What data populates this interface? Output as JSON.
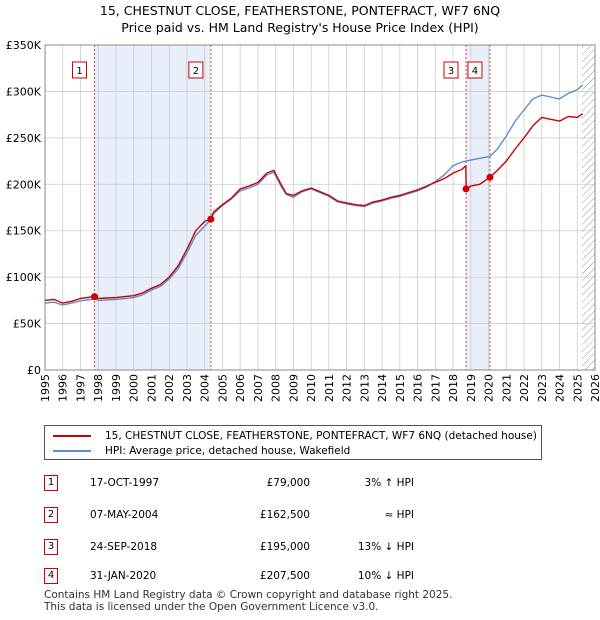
{
  "title_line1": "15, CHESTNUT CLOSE, FEATHERSTONE, PONTEFRACT, WF7 6NQ",
  "title_line2": "Price paid vs. HM Land Registry's House Price Index (HPI)",
  "colors": {
    "property": "#cc0000",
    "hpi": "#5b8fcf",
    "band": "#e8eefa",
    "grid": "#cccccc",
    "marker_line": "#dd4444",
    "hatch": "#999999"
  },
  "chart_data": {
    "type": "line",
    "ylim": [
      0,
      350000
    ],
    "xlim": [
      1995,
      2026
    ],
    "y_ticks": [
      0,
      50000,
      100000,
      150000,
      200000,
      250000,
      300000,
      350000
    ],
    "y_tick_labels": [
      "£0",
      "£50K",
      "£100K",
      "£150K",
      "£200K",
      "£250K",
      "£300K",
      "£350K"
    ],
    "x_ticks": [
      1995,
      1996,
      1997,
      1998,
      1999,
      2000,
      2001,
      2002,
      2003,
      2004,
      2005,
      2006,
      2007,
      2008,
      2009,
      2010,
      2011,
      2012,
      2013,
      2014,
      2015,
      2016,
      2017,
      2018,
      2019,
      2020,
      2021,
      2022,
      2023,
      2024,
      2025,
      2026
    ],
    "x_tick_labels": [
      "1995",
      "1996",
      "1997",
      "1998",
      "1999",
      "2000",
      "2001",
      "2002",
      "2003",
      "2004",
      "2005",
      "2006",
      "2007",
      "2008",
      "2009",
      "2010",
      "2011",
      "2012",
      "2013",
      "2014",
      "2015",
      "2016",
      "2017",
      "2018",
      "2019",
      "2020",
      "2021",
      "2022",
      "2023",
      "2024",
      "2025",
      "2026"
    ],
    "forecast_from": 2025.25,
    "series": [
      {
        "name": "15, CHESTNUT CLOSE, FEATHERSTONE, PONTEFRACT, WF7 6NQ (detached house)",
        "role": "property",
        "x": [
          1995.0,
          1995.5,
          1996.0,
          1996.5,
          1997.0,
          1997.79,
          1998.0,
          1998.5,
          1999.0,
          1999.5,
          2000.0,
          2000.5,
          2001.0,
          2001.5,
          2002.0,
          2002.5,
          2003.0,
          2003.5,
          2004.0,
          2004.35,
          2004.5,
          2005.0,
          2005.5,
          2006.0,
          2006.5,
          2007.0,
          2007.5,
          2007.9,
          2008.3,
          2008.6,
          2009.0,
          2009.5,
          2010.0,
          2010.5,
          2011.0,
          2011.5,
          2012.0,
          2012.5,
          2013.0,
          2013.5,
          2014.0,
          2014.5,
          2015.0,
          2015.5,
          2016.0,
          2016.5,
          2017.0,
          2017.5,
          2018.0,
          2018.5,
          2018.72,
          2018.74,
          2019.0,
          2019.5,
          2020.08,
          2020.5,
          2021.0,
          2021.5,
          2022.0,
          2022.5,
          2023.0,
          2023.5,
          2024.0,
          2024.5,
          2025.0,
          2025.3
        ],
        "values": [
          75000,
          76000,
          72000,
          74000,
          77000,
          79000,
          77000,
          77500,
          78000,
          79000,
          80000,
          83000,
          88000,
          92000,
          100000,
          112000,
          130000,
          150000,
          160000,
          162500,
          170000,
          178000,
          185000,
          195000,
          198000,
          202000,
          212000,
          215000,
          200000,
          190000,
          188000,
          193000,
          196000,
          192000,
          188000,
          182000,
          180000,
          178000,
          177000,
          181000,
          183000,
          186000,
          188000,
          191000,
          194000,
          198000,
          202000,
          206000,
          212000,
          216000,
          220000,
          195000,
          198000,
          200000,
          207500,
          215000,
          225000,
          238000,
          250000,
          263000,
          272000,
          270000,
          268000,
          273000,
          272000,
          276000
        ]
      },
      {
        "name": "HPI: Average price, detached house, Wakefield",
        "role": "hpi",
        "x": [
          1995.0,
          1995.5,
          1996.0,
          1996.5,
          1997.0,
          1997.79,
          1998.0,
          1998.5,
          1999.0,
          1999.5,
          2000.0,
          2000.5,
          2001.0,
          2001.5,
          2002.0,
          2002.5,
          2003.0,
          2003.5,
          2004.0,
          2004.35,
          2004.5,
          2005.0,
          2005.5,
          2006.0,
          2006.5,
          2007.0,
          2007.5,
          2007.9,
          2008.3,
          2008.6,
          2009.0,
          2009.5,
          2010.0,
          2010.5,
          2011.0,
          2011.5,
          2012.0,
          2012.5,
          2013.0,
          2013.5,
          2014.0,
          2014.5,
          2015.0,
          2015.5,
          2016.0,
          2016.5,
          2017.0,
          2017.5,
          2018.0,
          2018.5,
          2018.72,
          2019.0,
          2019.5,
          2020.08,
          2020.5,
          2021.0,
          2021.5,
          2022.0,
          2022.5,
          2023.0,
          2023.5,
          2024.0,
          2024.5,
          2025.0,
          2025.3
        ],
        "values": [
          72000,
          73000,
          70000,
          72000,
          74500,
          76500,
          75000,
          75500,
          76000,
          77000,
          78000,
          81000,
          86000,
          90000,
          98000,
          109000,
          126000,
          145000,
          155000,
          162000,
          168000,
          177000,
          184000,
          193000,
          196000,
          200000,
          210000,
          213000,
          198000,
          189000,
          186000,
          192000,
          195000,
          191000,
          187000,
          181000,
          179000,
          177000,
          176000,
          180000,
          182000,
          185000,
          187000,
          190000,
          193000,
          197000,
          203000,
          210000,
          220000,
          224000,
          225000,
          226000,
          228000,
          230000,
          238000,
          252000,
          268000,
          280000,
          292000,
          296000,
          294000,
          292000,
          298000,
          302000,
          307000
        ]
      }
    ],
    "sales": [
      {
        "label": "1",
        "x": 1997.79,
        "value": 79000
      },
      {
        "label": "2",
        "x": 2004.35,
        "value": 162500
      },
      {
        "label": "3",
        "x": 2018.73,
        "value": 195000
      },
      {
        "label": "4",
        "x": 2020.08,
        "value": 207500
      }
    ],
    "shaded_periods": [
      [
        1997.79,
        2004.35
      ],
      [
        2018.73,
        2020.08
      ]
    ]
  },
  "legend": {
    "property_label": "15, CHESTNUT CLOSE, FEATHERSTONE, PONTEFRACT, WF7 6NQ (detached house)",
    "hpi_label": "HPI: Average price, detached house, Wakefield"
  },
  "transactions": [
    {
      "num": "1",
      "date": "17-OCT-1997",
      "price": "£79,000",
      "hpi": "3% ↑ HPI"
    },
    {
      "num": "2",
      "date": "07-MAY-2004",
      "price": "£162,500",
      "hpi": "≈ HPI"
    },
    {
      "num": "3",
      "date": "24-SEP-2018",
      "price": "£195,000",
      "hpi": "13% ↓ HPI"
    },
    {
      "num": "4",
      "date": "31-JAN-2020",
      "price": "£207,500",
      "hpi": "10% ↓ HPI"
    }
  ],
  "footer_line1": "Contains HM Land Registry data © Crown copyright and database right 2025.",
  "footer_line2": "This data is licensed under the Open Government Licence v3.0."
}
